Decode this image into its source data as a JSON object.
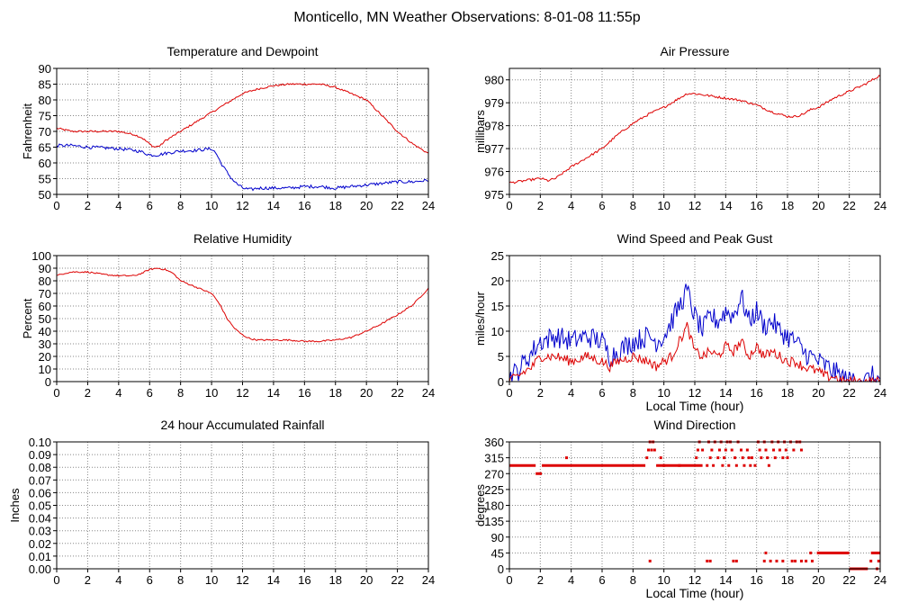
{
  "page": {
    "title": "Monticello, MN Weather Observations: 8-01-08 11:55p"
  },
  "colors": {
    "primary": "#dd0000",
    "secondary": "#0000cc",
    "grid": "#888888",
    "axis": "#000000"
  },
  "chart_data": [
    {
      "id": "temp",
      "type": "line",
      "title": "Temperature and Dewpoint",
      "xlabel": "",
      "ylabel": "Fahrenheit",
      "xlim": [
        0,
        24
      ],
      "ylim": [
        50,
        90
      ],
      "xticks": [
        0,
        2,
        4,
        6,
        8,
        10,
        12,
        14,
        16,
        18,
        20,
        22,
        24
      ],
      "yticks": [
        50,
        55,
        60,
        65,
        70,
        75,
        80,
        85,
        90
      ],
      "grid": true,
      "series": [
        {
          "color": "#dd0000",
          "jitter": 0.3,
          "x": [
            0,
            1,
            2,
            3,
            4,
            5,
            5.5,
            6,
            6.3,
            6.7,
            7,
            8,
            9,
            10,
            11,
            12,
            13,
            14,
            15,
            16,
            17,
            18,
            19,
            20,
            21,
            22,
            23,
            24
          ],
          "y": [
            71,
            70,
            70,
            70,
            70,
            69,
            68,
            66,
            65,
            65.5,
            67,
            70,
            73,
            76,
            79,
            82,
            83.5,
            84.5,
            85,
            85,
            85,
            84,
            82,
            80,
            75,
            70,
            66,
            63
          ]
        },
        {
          "color": "#0000cc",
          "jitter": 0.5,
          "x": [
            0,
            1,
            2,
            3,
            4,
            5,
            5.5,
            6,
            6.5,
            7,
            8,
            9,
            10,
            10.3,
            10.6,
            11,
            11.3,
            11.6,
            12,
            12.5,
            13,
            14,
            15,
            16,
            17,
            18,
            19,
            20,
            21,
            22,
            23,
            24
          ],
          "y": [
            65.5,
            65.5,
            65,
            64.8,
            64.5,
            64,
            63.5,
            62.5,
            62.5,
            63,
            63.8,
            64,
            64.5,
            63,
            60,
            57,
            55,
            53.5,
            52,
            51.5,
            52,
            52,
            52,
            52.5,
            52.5,
            52,
            52.5,
            53,
            53.5,
            54,
            54,
            54.5
          ]
        }
      ]
    },
    {
      "id": "pressure",
      "type": "line",
      "title": "Air Pressure",
      "xlabel": "",
      "ylabel": "millibars",
      "xlim": [
        0,
        24
      ],
      "ylim": [
        975,
        980.5
      ],
      "xticks": [
        0,
        2,
        4,
        6,
        8,
        10,
        12,
        14,
        16,
        18,
        20,
        22,
        24
      ],
      "yticks": [
        975,
        976,
        977,
        978,
        979,
        980
      ],
      "grid": true,
      "series": [
        {
          "color": "#dd0000",
          "jitter": 0.05,
          "x": [
            0,
            1,
            2,
            2.5,
            3,
            4,
            5,
            6,
            7,
            8,
            9,
            10,
            11,
            11.5,
            12,
            13,
            14,
            15,
            16,
            17,
            17.5,
            18,
            18.5,
            19,
            19.5,
            20,
            20.5,
            21,
            22,
            23,
            24
          ],
          "y": [
            975.5,
            975.6,
            975.7,
            975.6,
            975.7,
            976.2,
            976.6,
            977,
            977.6,
            978.1,
            978.5,
            978.8,
            979.2,
            979.4,
            979.4,
            979.3,
            979.2,
            979.1,
            978.9,
            978.6,
            978.5,
            978.4,
            978.4,
            978.5,
            978.7,
            978.8,
            979,
            979.2,
            979.5,
            979.8,
            980.2
          ]
        }
      ]
    },
    {
      "id": "humidity",
      "type": "line",
      "title": "Relative Humidity",
      "xlabel": "",
      "ylabel": "Percent",
      "xlim": [
        0,
        24
      ],
      "ylim": [
        0,
        100
      ],
      "xticks": [
        0,
        2,
        4,
        6,
        8,
        10,
        12,
        14,
        16,
        18,
        20,
        22,
        24
      ],
      "yticks": [
        0,
        10,
        20,
        30,
        40,
        50,
        60,
        70,
        80,
        90,
        100
      ],
      "grid": true,
      "series": [
        {
          "color": "#dd0000",
          "jitter": 0.6,
          "x": [
            0,
            0.5,
            1,
            2,
            3,
            4,
            5,
            5.5,
            6,
            6.5,
            7,
            7.5,
            8,
            9,
            10,
            10.5,
            11,
            11.5,
            12,
            12.5,
            13,
            14,
            15,
            16,
            17,
            18,
            19,
            20,
            21,
            22,
            23,
            24
          ],
          "y": [
            84,
            86,
            87,
            87,
            85,
            84,
            84,
            86,
            89,
            90,
            89,
            86,
            80,
            75,
            70,
            62,
            50,
            42,
            37,
            34,
            33,
            33,
            33,
            32,
            32,
            33,
            35,
            40,
            46,
            53,
            61,
            74
          ]
        }
      ]
    },
    {
      "id": "wind",
      "type": "line",
      "title": "Wind Speed and Peak Gust",
      "xlabel": "Local Time (hour)",
      "ylabel": "miles/hour",
      "xlim": [
        0,
        24
      ],
      "ylim": [
        0,
        25
      ],
      "xticks": [
        0,
        2,
        4,
        6,
        8,
        10,
        12,
        14,
        16,
        18,
        20,
        22,
        24
      ],
      "yticks": [
        0,
        5,
        10,
        15,
        20,
        25
      ],
      "grid": true,
      "series": [
        {
          "color": "#0000cc",
          "jitter": 2.2,
          "x": [
            0,
            0.5,
            1,
            1.5,
            2,
            3,
            4,
            5,
            6,
            6.5,
            7,
            8,
            9,
            9.5,
            10,
            10.5,
            11,
            11.5,
            12,
            12.5,
            13,
            13.5,
            14,
            14.5,
            15,
            15.5,
            16,
            16.5,
            17,
            17.5,
            18,
            18.5,
            19,
            20,
            20.5,
            21,
            21.5,
            22,
            22.5,
            23,
            23.5,
            24
          ],
          "y": [
            1,
            2,
            4,
            6,
            8,
            9,
            8,
            9,
            8,
            5,
            6,
            8,
            9,
            8,
            9,
            12,
            15,
            18,
            13,
            10,
            13,
            12,
            14,
            13,
            17,
            12,
            14,
            11,
            12,
            10,
            9,
            8,
            6,
            4,
            3,
            2,
            1,
            0,
            1,
            0,
            1,
            0
          ]
        },
        {
          "color": "#dd0000",
          "jitter": 1.0,
          "x": [
            0,
            0.5,
            1,
            1.5,
            2,
            3,
            4,
            5,
            6,
            6.5,
            7,
            8,
            9,
            9.5,
            10,
            10.5,
            11,
            11.5,
            12,
            12.5,
            13,
            13.5,
            14,
            14.5,
            15,
            15.5,
            16,
            16.5,
            17,
            17.5,
            18,
            18.5,
            19,
            20,
            20.5,
            21,
            21.5,
            22,
            22.5,
            23,
            23.5,
            24
          ],
          "y": [
            0,
            1,
            2,
            3,
            5,
            5,
            4,
            5,
            4,
            3,
            4,
            5,
            4,
            3,
            4,
            5,
            8,
            11,
            6,
            5,
            6,
            5,
            7,
            6,
            8,
            5,
            7,
            5,
            6,
            5,
            4,
            4,
            3,
            2,
            1,
            1,
            0,
            0,
            0,
            0,
            0,
            0
          ]
        }
      ]
    },
    {
      "id": "rain",
      "type": "line",
      "title": "24 hour Accumulated Rainfall",
      "xlabel": "",
      "ylabel": "Inches",
      "xlim": [
        0,
        24
      ],
      "ylim": [
        0,
        0.1
      ],
      "xticks": [
        0,
        2,
        4,
        6,
        8,
        10,
        12,
        14,
        16,
        18,
        20,
        22,
        24
      ],
      "yticks": [
        0,
        0.01,
        0.02,
        0.03,
        0.04,
        0.05,
        0.06,
        0.07,
        0.08,
        0.09,
        0.1
      ],
      "ytick_labels": [
        "0.00",
        "0.01",
        "0.02",
        "0.03",
        "0.04",
        "0.05",
        "0.06",
        "0.07",
        "0.08",
        "0.09",
        "0.10"
      ],
      "grid": true,
      "series": [
        {
          "color": "#dd0000",
          "x": [
            0,
            24
          ],
          "y": [
            0,
            0
          ]
        }
      ]
    },
    {
      "id": "winddir",
      "type": "scatter",
      "title": "Wind Direction",
      "xlabel": "Local Time (hour)",
      "ylabel": "degrees",
      "xlim": [
        0,
        24
      ],
      "ylim": [
        0,
        360
      ],
      "xticks": [
        0,
        2,
        4,
        6,
        8,
        10,
        12,
        14,
        16,
        18,
        20,
        22,
        24
      ],
      "yticks": [
        0,
        45,
        90,
        135,
        180,
        225,
        270,
        315,
        360
      ],
      "grid": true,
      "series": [
        {
          "color": "#dd0000",
          "segments": [
            {
              "x0": 0,
              "x1": 1.7,
              "y": 293
            },
            {
              "x0": 1.7,
              "x1": 2.1,
              "y": 270
            },
            {
              "x0": 2.1,
              "x1": 8.8,
              "y": 293
            },
            {
              "x0": 9.5,
              "x1": 12.5,
              "y": 293
            },
            {
              "x0": 19.9,
              "x1": 22.0,
              "y": 45
            },
            {
              "x0": 22.0,
              "x1": 23.2,
              "y": 0
            },
            {
              "x0": 23.4,
              "x1": 24,
              "y": 45
            }
          ],
          "points": [
            [
              3.7,
              315
            ],
            [
              8.9,
              315
            ],
            [
              9.0,
              337
            ],
            [
              9.1,
              360
            ],
            [
              9.2,
              337
            ],
            [
              9.3,
              360
            ],
            [
              9.4,
              337
            ],
            [
              9.1,
              22
            ],
            [
              9.8,
              315
            ],
            [
              10.0,
              293
            ],
            [
              11.0,
              293
            ],
            [
              12.1,
              315
            ],
            [
              12.2,
              337
            ],
            [
              12.3,
              360
            ],
            [
              12.5,
              337
            ],
            [
              12.8,
              293
            ],
            [
              12.9,
              360
            ],
            [
              13.0,
              315
            ],
            [
              13.1,
              337
            ],
            [
              13.2,
              293
            ],
            [
              13.3,
              360
            ],
            [
              13.5,
              315
            ],
            [
              13.6,
              337
            ],
            [
              13.7,
              360
            ],
            [
              13.8,
              293
            ],
            [
              13.9,
              315
            ],
            [
              14.0,
              337
            ],
            [
              14.1,
              360
            ],
            [
              14.2,
              293
            ],
            [
              14.3,
              360
            ],
            [
              14.4,
              337
            ],
            [
              14.6,
              315
            ],
            [
              14.7,
              293
            ],
            [
              14.8,
              360
            ],
            [
              15.0,
              337
            ],
            [
              15.1,
              315
            ],
            [
              15.2,
              293
            ],
            [
              15.4,
              337
            ],
            [
              15.5,
              315
            ],
            [
              15.6,
              293
            ],
            [
              15.7,
              315
            ],
            [
              15.9,
              293
            ],
            [
              16.1,
              360
            ],
            [
              16.2,
              337
            ],
            [
              16.3,
              315
            ],
            [
              16.5,
              360
            ],
            [
              16.6,
              337
            ],
            [
              16.7,
              315
            ],
            [
              16.8,
              293
            ],
            [
              17.0,
              360
            ],
            [
              17.1,
              337
            ],
            [
              17.2,
              315
            ],
            [
              17.4,
              360
            ],
            [
              17.5,
              337
            ],
            [
              17.7,
              315
            ],
            [
              17.8,
              360
            ],
            [
              17.9,
              337
            ],
            [
              18.0,
              315
            ],
            [
              18.2,
              360
            ],
            [
              18.4,
              337
            ],
            [
              18.6,
              360
            ],
            [
              18.8,
              360
            ],
            [
              18.9,
              337
            ],
            [
              12.8,
              22
            ],
            [
              13.0,
              22
            ],
            [
              14.5,
              22
            ],
            [
              14.7,
              22
            ],
            [
              16.6,
              45
            ],
            [
              16.5,
              22
            ],
            [
              16.9,
              22
            ],
            [
              17.3,
              22
            ],
            [
              17.7,
              22
            ],
            [
              18.3,
              22
            ],
            [
              18.5,
              22
            ],
            [
              18.9,
              22
            ],
            [
              19.2,
              22
            ],
            [
              19.5,
              45
            ],
            [
              19.6,
              22
            ],
            [
              23.4,
              22
            ],
            [
              23.8,
              0
            ],
            [
              23.9,
              22
            ]
          ]
        }
      ]
    }
  ]
}
